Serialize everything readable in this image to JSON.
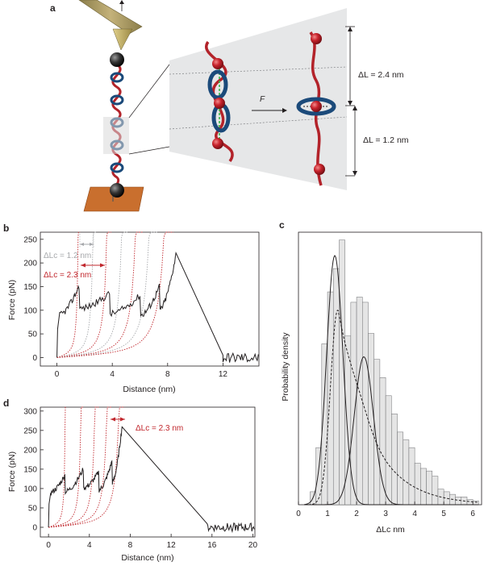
{
  "figure": {
    "panel_a": {
      "letter": "a",
      "force_symbol": "F",
      "dl1_label": "ΔL = 2.4 nm",
      "dl2_label": "ΔL = 1.2 nm"
    },
    "panel_b": {
      "letter": "b"
    },
    "panel_c": {
      "letter": "c"
    },
    "panel_d": {
      "letter": "d"
    }
  },
  "chart_data": [
    {
      "panel": "b",
      "type": "line",
      "xlabel": "Distance (nm)",
      "ylabel": "Force (pN)",
      "xlim": [
        -1.2,
        14.6
      ],
      "ylim": [
        -18,
        265
      ],
      "xticks": [
        0,
        4,
        8,
        12
      ],
      "yticks": [
        0,
        50,
        100,
        150,
        200,
        250
      ],
      "annotations": [
        {
          "text": "ΔLc = 1.2 nm",
          "color": "#a7a9ac"
        },
        {
          "text": "ΔLc = 2.3 nm",
          "color": "#c1272d"
        }
      ],
      "wlc_fit_contour_lengths_nm": [
        1.7,
        2.9,
        4.0,
        5.2,
        6.3,
        7.4,
        8.6
      ],
      "trace_peaks": [
        {
          "x": 1.6,
          "y": 152
        },
        {
          "x": 3.8,
          "y": 136
        },
        {
          "x": 6.0,
          "y": 132
        },
        {
          "x": 7.4,
          "y": 150
        },
        {
          "x": 8.6,
          "y": 218
        }
      ],
      "trace_after_rupture": [
        {
          "x": 12.0,
          "y": 5
        },
        {
          "x": 14.6,
          "y": 0
        }
      ],
      "colors": {
        "trace": "#231f20",
        "fit_red": "#c1272d",
        "fit_grey": "#a7a9ac"
      }
    },
    {
      "panel": "c",
      "type": "bar",
      "xlabel": "ΔLc nm",
      "ylabel": "Probability density",
      "xlim": [
        0,
        6.3
      ],
      "xticks": [
        0,
        1,
        2,
        3,
        4,
        5,
        6
      ],
      "bin_width": 0.2,
      "bin_start": 0.4,
      "values": [
        0.05,
        0.22,
        0.62,
        0.82,
        0.91,
        1.02,
        0.65,
        0.78,
        0.8,
        0.78,
        0.66,
        0.56,
        0.49,
        0.42,
        0.35,
        0.28,
        0.25,
        0.22,
        0.16,
        0.14,
        0.13,
        0.11,
        0.06,
        0.05,
        0.04,
        0.03,
        0.03,
        0.02,
        0.015
      ],
      "series": [
        {
          "style": "solid",
          "kind": "gaussian",
          "mean": 1.25,
          "sd": 0.28,
          "peak": 0.96
        },
        {
          "style": "solid",
          "kind": "gaussian",
          "mean": 2.25,
          "sd": 0.33,
          "peak": 0.57
        },
        {
          "style": "dashed",
          "kind": "skewed-envelope",
          "mode": 1.35,
          "peak": 0.75
        }
      ],
      "colors": {
        "bars": "#e5e5e5",
        "bar_edge": "#6d6e71"
      }
    },
    {
      "panel": "d",
      "type": "line",
      "xlabel": "Distance (nm)",
      "ylabel": "Force (pN)",
      "xlim": [
        -0.8,
        20.2
      ],
      "ylim": [
        -25,
        310
      ],
      "xticks": [
        0,
        4,
        8,
        12,
        16,
        20
      ],
      "yticks": [
        0,
        50,
        100,
        150,
        200,
        250,
        300
      ],
      "annotations": [
        {
          "text": "ΔLc = 2.3 nm",
          "color": "#c1272d"
        }
      ],
      "wlc_fit_contour_lengths_nm": [
        1.8,
        3.5,
        5.0,
        6.3,
        7.6
      ],
      "trace_peaks": [
        {
          "x": 1.6,
          "y": 135
        },
        {
          "x": 3.4,
          "y": 150
        },
        {
          "x": 4.9,
          "y": 142
        },
        {
          "x": 6.2,
          "y": 170
        },
        {
          "x": 7.2,
          "y": 262
        }
      ],
      "trace_after_rupture": [
        {
          "x": 15.5,
          "y": 10
        },
        {
          "x": 20.2,
          "y": 0
        }
      ],
      "colors": {
        "trace": "#231f20",
        "fit_red": "#c1272d"
      }
    }
  ]
}
